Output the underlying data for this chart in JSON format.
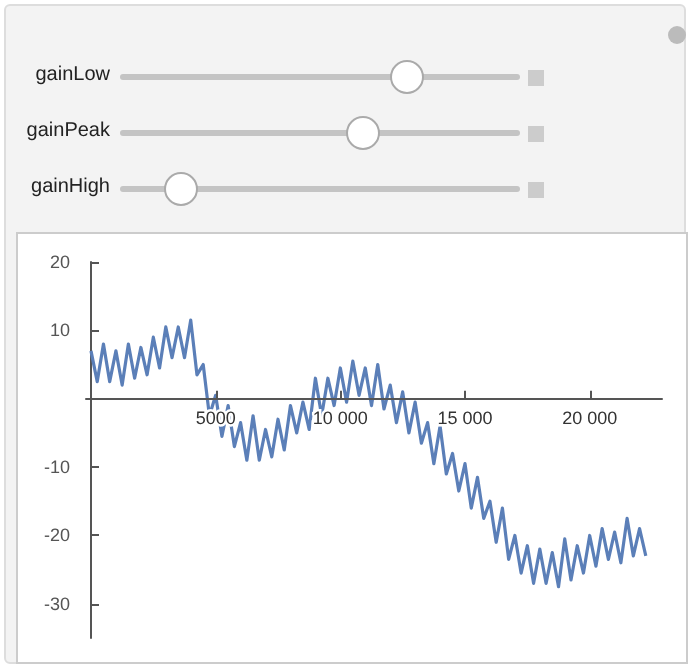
{
  "chart_data": {
    "type": "line",
    "annotations": [
      "gainLow",
      "gainPeak",
      "gainHigh"
    ],
    "x": [
      0,
      250,
      500,
      750,
      1000,
      1250,
      1500,
      1750,
      2000,
      2250,
      2500,
      2750,
      3000,
      3250,
      3500,
      3750,
      4000,
      4250,
      4500,
      4750,
      5000,
      5250,
      5500,
      5750,
      6000,
      6250,
      6500,
      6750,
      7000,
      7250,
      7500,
      7750,
      8000,
      8250,
      8500,
      8750,
      9000,
      9250,
      9500,
      9750,
      10000,
      10250,
      10500,
      10750,
      11000,
      11250,
      11500,
      11750,
      12000,
      12250,
      12500,
      12750,
      13000,
      13250,
      13500,
      13750,
      14000,
      14250,
      14500,
      14750,
      15000,
      15250,
      15500,
      15750,
      16000,
      16250,
      16500,
      16750,
      17000,
      17250,
      17500,
      17750,
      18000,
      18250,
      18500,
      18750,
      19000,
      19250,
      19500,
      19750,
      20000,
      20250,
      20500,
      20750,
      21000,
      21250,
      21500,
      21750,
      22000,
      22250
    ],
    "series": [
      {
        "color": "#5b7fb8",
        "values": [
          7,
          2.5,
          8,
          2.5,
          7,
          2,
          8,
          3,
          7.5,
          3.5,
          9,
          4.5,
          10.5,
          6,
          10.5,
          6,
          11.5,
          3.5,
          5,
          -2.5,
          0.5,
          -5.5,
          -1,
          -7,
          -3.5,
          -9,
          -2.5,
          -9,
          -4.5,
          -8.5,
          -3,
          -7.5,
          -1,
          -5,
          -0.5,
          -4.5,
          3,
          -2.5,
          3,
          -1,
          4.5,
          -0.5,
          5.5,
          0.5,
          4.5,
          -1,
          5,
          -1.5,
          2,
          -3.5,
          1,
          -5,
          -0.5,
          -6.5,
          -3.5,
          -9.5,
          -4,
          -11,
          -8,
          -13.5,
          -9.5,
          -16,
          -11.5,
          -17.5,
          -15,
          -21,
          -16,
          -23.5,
          -20,
          -25.5,
          -21.5,
          -27,
          -22,
          -27,
          -22.5,
          -27.5,
          -20.5,
          -26.5,
          -21.5,
          -25.5,
          -20,
          -24.5,
          -19,
          -23.5,
          -19.5,
          -24,
          -17.5,
          -23,
          -19,
          -23
        ]
      }
    ],
    "xlim": [
      -200,
      22900
    ],
    "ylim": [
      -35,
      20
    ],
    "xticks": [
      5000,
      {
        "value": 10000,
        "label": "10 000"
      },
      {
        "value": 15000,
        "label": "15 000"
      },
      {
        "value": 20000,
        "label": "20 000"
      }
    ],
    "yticks": [
      -30,
      -20,
      -10,
      10,
      20
    ],
    "marker": "none",
    "line_style": "solid"
  }
}
